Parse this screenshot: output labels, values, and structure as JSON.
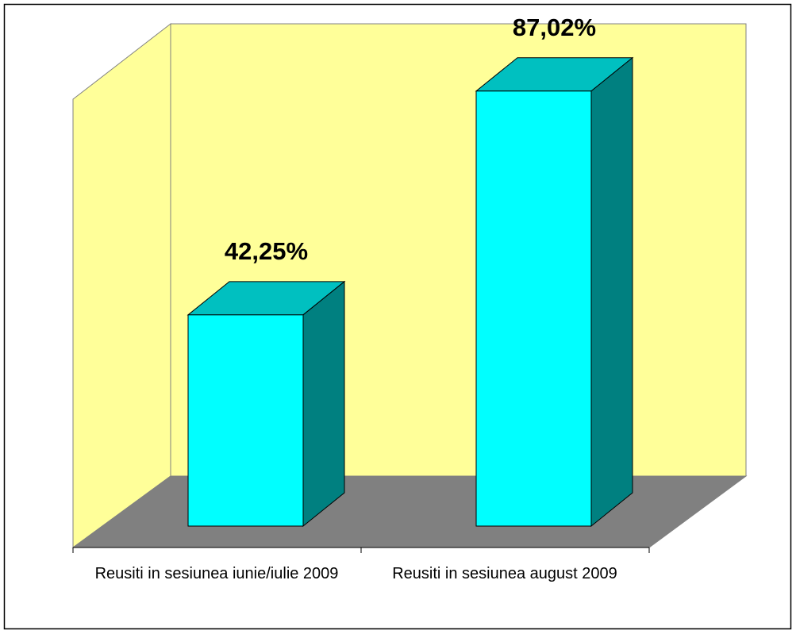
{
  "chart_data": {
    "type": "bar",
    "categories": [
      "Reusiti in sesiunea iunie/iulie 2009",
      "Reusiti in sesiunea august 2009"
    ],
    "values": [
      42.25,
      87.02
    ],
    "value_labels": [
      "42,25%",
      "87,02%"
    ],
    "ylim": [
      0,
      100
    ],
    "color": "#00ffff"
  }
}
